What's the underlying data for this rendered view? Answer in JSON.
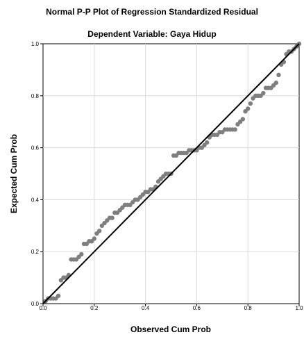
{
  "chart_data": {
    "type": "scatter",
    "title": "Normal P-P Plot of Regression Standardized Residual",
    "subtitle": "Dependent Variable: Gaya Hidup",
    "xlabel": "Observed Cum Prob",
    "ylabel": "Expected Cum Prob",
    "xlim": [
      0,
      1
    ],
    "ylim": [
      0,
      1
    ],
    "xticks": [
      "0.0",
      "0.2",
      "0.4",
      "0.6",
      "0.8",
      "1.0"
    ],
    "yticks": [
      "0.0",
      "0.2",
      "0.4",
      "0.6",
      "0.8",
      "1.0"
    ],
    "grid": true,
    "reference_line": {
      "x": [
        0,
        1
      ],
      "y": [
        0,
        1
      ]
    },
    "point_color": "#7f7f7f",
    "line_color": "#000000",
    "series": [
      {
        "x": [
          0.01,
          0.02,
          0.03,
          0.04,
          0.05,
          0.06,
          0.07,
          0.08,
          0.09,
          0.1,
          0.11,
          0.12,
          0.13,
          0.14,
          0.15,
          0.16,
          0.17,
          0.18,
          0.19,
          0.2,
          0.21,
          0.22,
          0.23,
          0.24,
          0.25,
          0.26,
          0.27,
          0.28,
          0.29,
          0.3,
          0.31,
          0.32,
          0.33,
          0.34,
          0.35,
          0.36,
          0.37,
          0.38,
          0.39,
          0.4,
          0.41,
          0.42,
          0.43,
          0.44,
          0.45,
          0.46,
          0.47,
          0.48,
          0.49,
          0.5,
          0.51,
          0.52,
          0.53,
          0.54,
          0.55,
          0.56,
          0.57,
          0.58,
          0.59,
          0.6,
          0.61,
          0.62,
          0.63,
          0.64,
          0.65,
          0.66,
          0.67,
          0.68,
          0.69,
          0.7,
          0.71,
          0.72,
          0.73,
          0.74,
          0.75,
          0.76,
          0.77,
          0.78,
          0.79,
          0.8,
          0.81,
          0.82,
          0.83,
          0.84,
          0.85,
          0.86,
          0.87,
          0.88,
          0.89,
          0.9,
          0.91,
          0.92,
          0.93,
          0.94,
          0.95,
          0.96,
          0.97,
          0.98,
          0.99,
          1.0
        ],
        "y": [
          0.01,
          0.02,
          0.02,
          0.02,
          0.02,
          0.03,
          0.09,
          0.1,
          0.1,
          0.11,
          0.17,
          0.17,
          0.17,
          0.18,
          0.19,
          0.23,
          0.23,
          0.24,
          0.24,
          0.25,
          0.27,
          0.28,
          0.3,
          0.31,
          0.32,
          0.33,
          0.33,
          0.35,
          0.35,
          0.36,
          0.37,
          0.38,
          0.38,
          0.38,
          0.39,
          0.4,
          0.4,
          0.41,
          0.42,
          0.43,
          0.43,
          0.44,
          0.44,
          0.45,
          0.47,
          0.48,
          0.49,
          0.5,
          0.5,
          0.5,
          0.57,
          0.57,
          0.58,
          0.58,
          0.58,
          0.58,
          0.59,
          0.59,
          0.59,
          0.59,
          0.6,
          0.6,
          0.61,
          0.62,
          0.64,
          0.65,
          0.65,
          0.65,
          0.66,
          0.66,
          0.67,
          0.67,
          0.67,
          0.67,
          0.67,
          0.69,
          0.7,
          0.71,
          0.74,
          0.75,
          0.77,
          0.79,
          0.8,
          0.8,
          0.8,
          0.81,
          0.83,
          0.83,
          0.83,
          0.84,
          0.85,
          0.88,
          0.92,
          0.93,
          0.96,
          0.97,
          0.97,
          0.98,
          0.99,
          1.0
        ]
      }
    ]
  }
}
